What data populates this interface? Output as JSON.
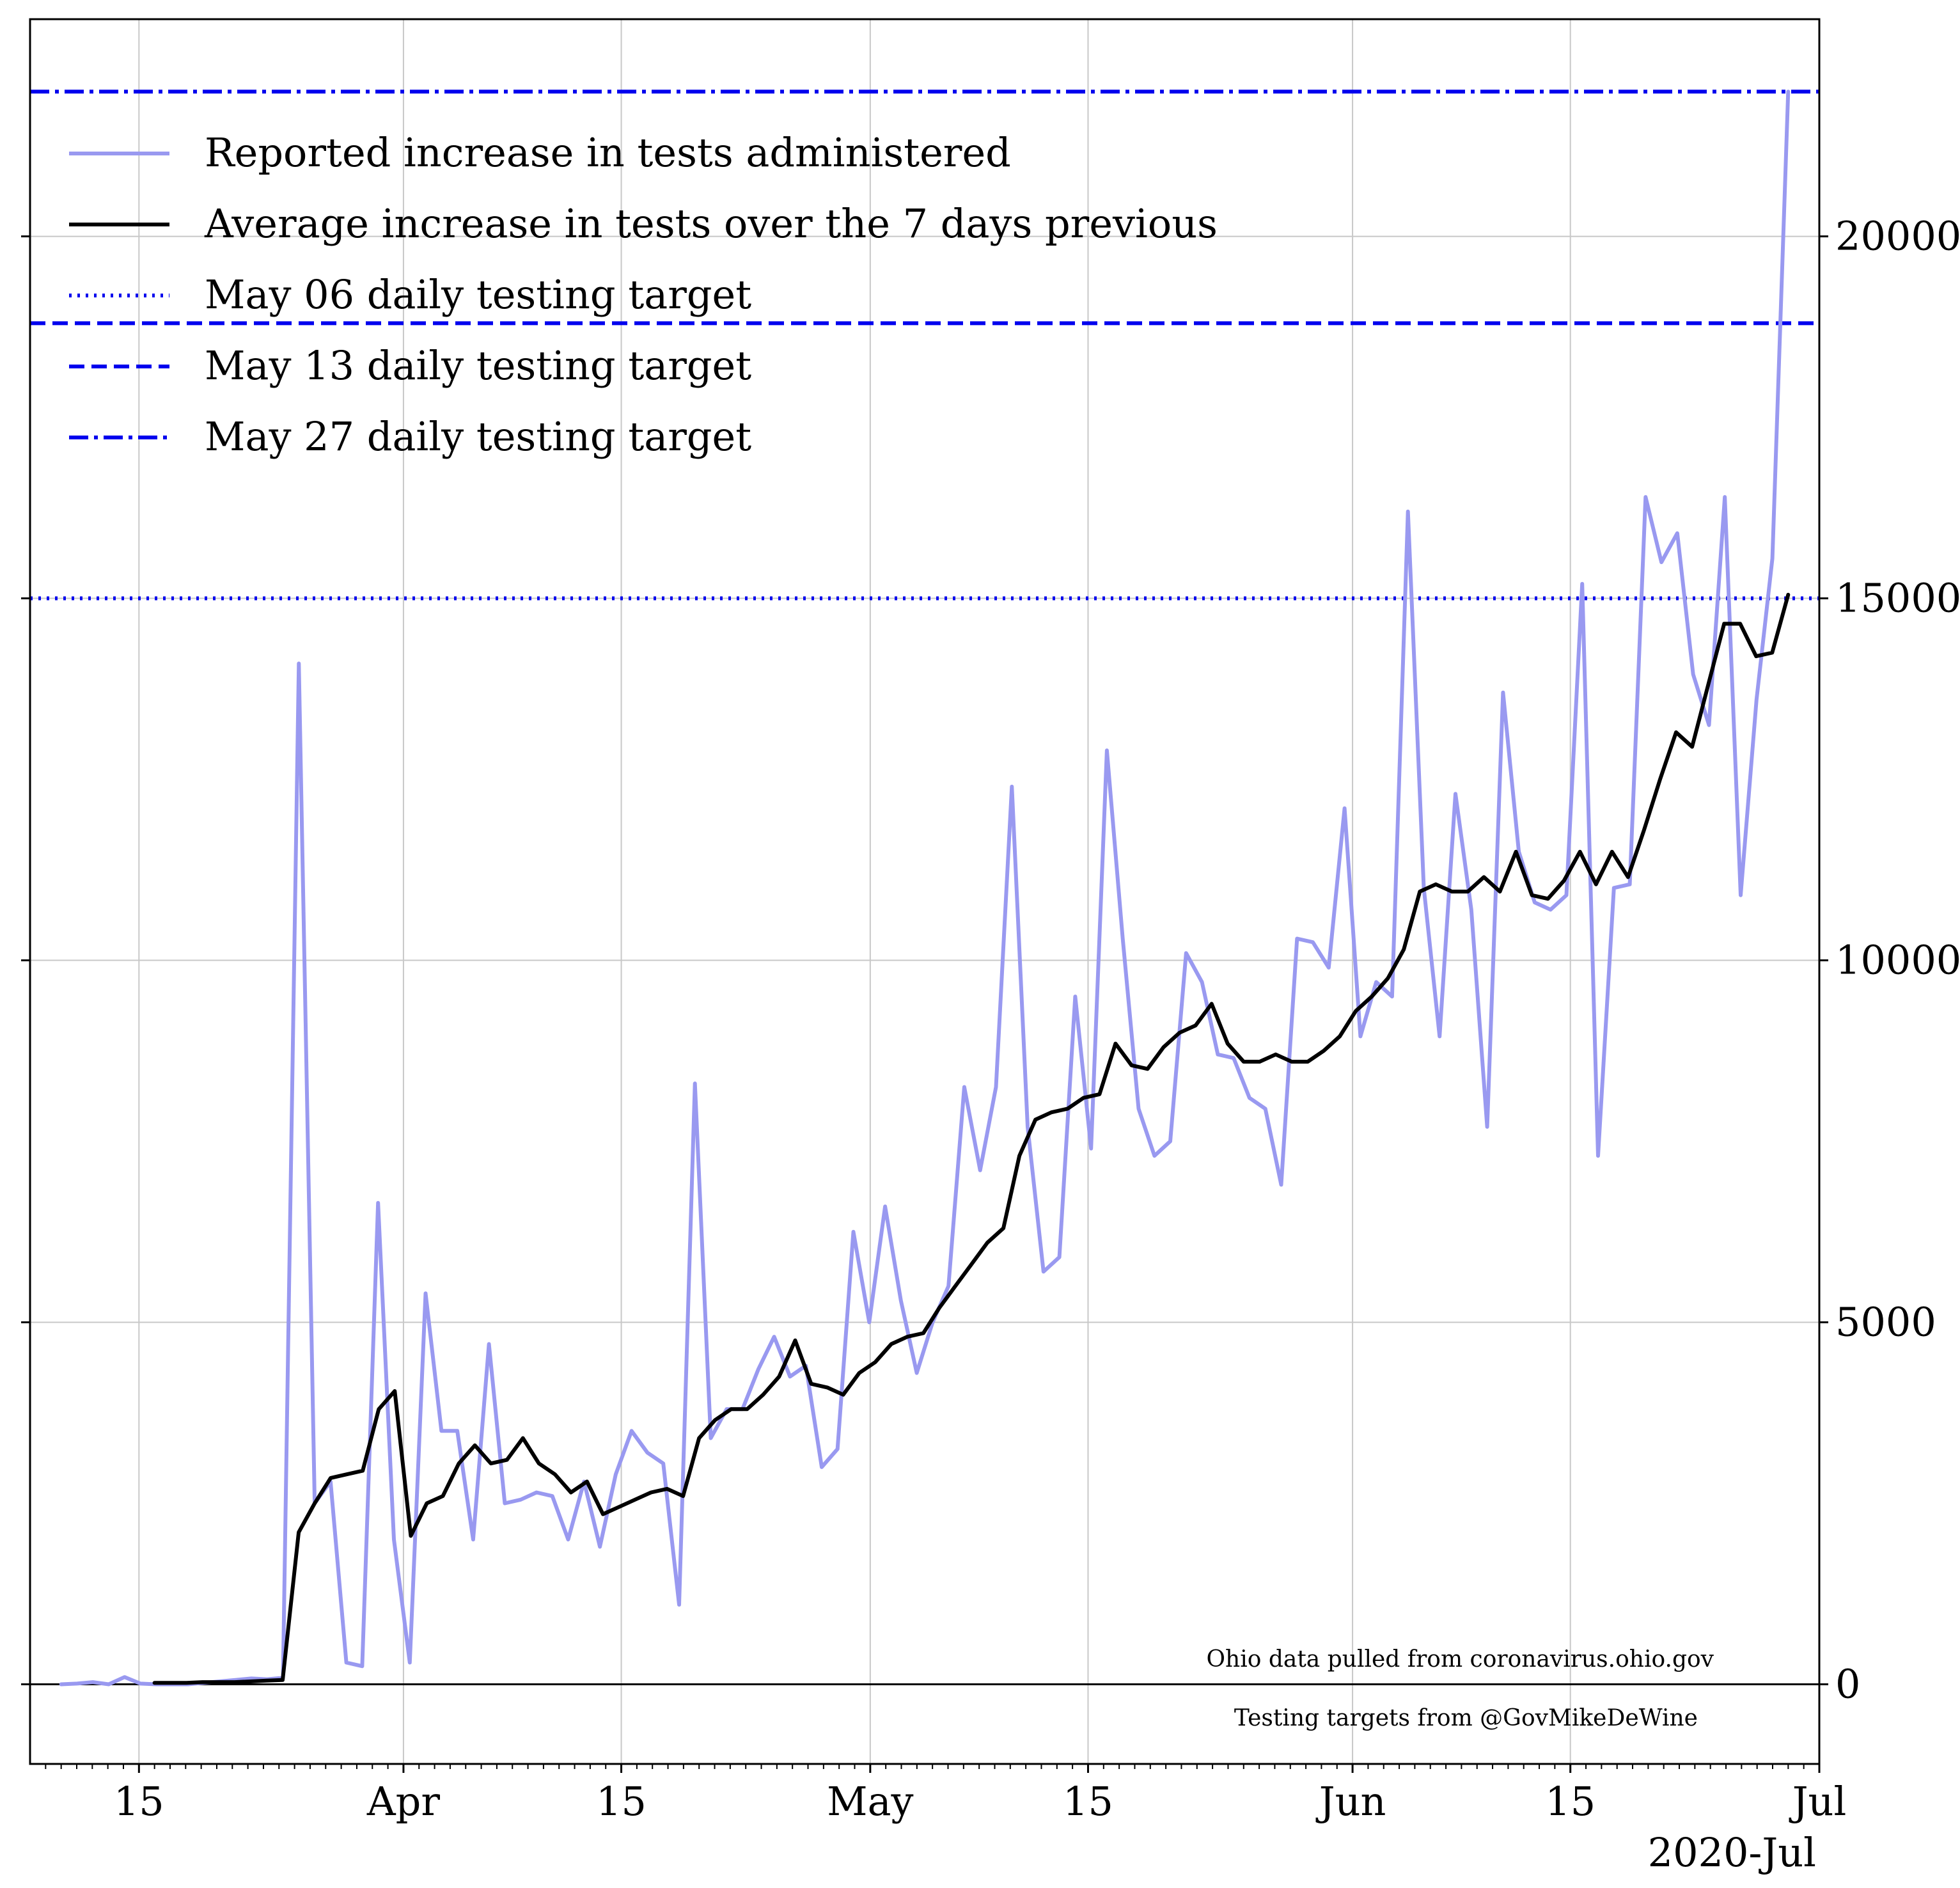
{
  "chart_data": {
    "type": "line",
    "x_axis": {
      "type": "date",
      "range": [
        "2020-03-08",
        "2020-07-01"
      ],
      "tick_labels": [
        {
          "date": "2020-03-15",
          "label": "15"
        },
        {
          "date": "2020-04-01",
          "label": "Apr"
        },
        {
          "date": "2020-04-15",
          "label": "15"
        },
        {
          "date": "2020-05-01",
          "label": "May"
        },
        {
          "date": "2020-05-15",
          "label": "15"
        },
        {
          "date": "2020-06-01",
          "label": "Jun"
        },
        {
          "date": "2020-06-15",
          "label": "15"
        },
        {
          "date": "2020-07-01",
          "label": "Jul"
        }
      ],
      "offset_label": "2020-Jul"
    },
    "y_axis": {
      "range": [
        -1100,
        23000
      ],
      "ticks": [
        0,
        5000,
        10000,
        15000,
        20000
      ],
      "tick_labels": [
        "0",
        "5000",
        "10000",
        "15000",
        "20000"
      ],
      "position": "right"
    },
    "grid": true,
    "legend": {
      "placement": "upper-left",
      "entries": [
        "Reported increase in tests administered",
        "Average increase in tests over the 7 days previous",
        "May 06 daily testing target",
        "May 13 daily testing target",
        "May 27 daily testing target"
      ]
    },
    "series": [
      {
        "name": "Reported increase in tests administered",
        "color": "#9999f0",
        "start_date": "2020-03-10",
        "values": [
          0,
          10,
          30,
          0,
          100,
          10,
          0,
          0,
          0,
          20,
          40,
          60,
          80,
          70,
          90,
          14100,
          2500,
          2800,
          300,
          250,
          6650,
          2000,
          300,
          5400,
          3500,
          3500,
          2000,
          4700,
          2500,
          2550,
          2650,
          2600,
          2000,
          2800,
          1900,
          2900,
          3500,
          3200,
          3050,
          1100,
          8300,
          3400,
          3800,
          3800,
          4350,
          4800,
          4250,
          4400,
          3000,
          3250,
          6250,
          5000,
          6600,
          5300,
          4300,
          5000,
          5500,
          8250,
          7100,
          8250,
          12400,
          7700,
          5700,
          5900,
          9500,
          7400,
          12900,
          10300,
          7950,
          7300,
          7500,
          10100,
          9700,
          8700,
          8650,
          8100,
          7950,
          6900,
          10300,
          10250,
          9900,
          12100,
          8950,
          9700,
          9500,
          16200,
          11000,
          8950,
          12300,
          10700,
          7700,
          13700,
          11500,
          10800,
          10700,
          10900,
          15200,
          7300,
          11000,
          11050,
          16400,
          15500,
          15900,
          13950,
          13250,
          16400,
          10900,
          13600,
          15550,
          22000
        ],
        "x_max_date": "2020-06-29"
      },
      {
        "name": "Average increase in tests over the 7 days previous",
        "color": "#000000",
        "start_date": "2020-03-16",
        "values": [
          20,
          20,
          20,
          30,
          30,
          30,
          40,
          50,
          60,
          2100,
          2500,
          2850,
          2900,
          2950,
          3800,
          4050,
          2050,
          2500,
          2600,
          3050,
          3300,
          3050,
          3100,
          3400,
          3050,
          2900,
          2650,
          2800,
          2350,
          2450,
          2550,
          2650,
          2700,
          2600,
          3400,
          3650,
          3800,
          3800,
          4000,
          4250,
          4750,
          4150,
          4100,
          4000,
          4300,
          4450,
          4700,
          4800,
          4850,
          5200,
          5500,
          5800,
          6100,
          6300,
          7300,
          7800,
          7900,
          7950,
          8100,
          8150,
          8850,
          8550,
          8500,
          8800,
          9000,
          9100,
          9400,
          8850,
          8600,
          8600,
          8700,
          8600,
          8600,
          8750,
          8950,
          9300,
          9500,
          9750,
          10150,
          10950,
          11050,
          10950,
          10950,
          11150,
          10950,
          11500,
          10900,
          10850,
          11100,
          11500,
          11050,
          11500,
          11150,
          11800,
          12500,
          13150,
          12950,
          13800,
          14650,
          14650,
          14200,
          14250,
          15050
        ],
        "x_max_date": "2020-06-29"
      }
    ],
    "reference_lines": [
      {
        "name": "May 06 daily testing target",
        "y": 15000,
        "style": "dotted",
        "color": "#0000ee"
      },
      {
        "name": "May 13 daily testing target",
        "y": 18800,
        "style": "dashed",
        "color": "#0000ee"
      },
      {
        "name": "May 27 daily testing target",
        "y": 22000,
        "style": "dashdot",
        "color": "#0000ee"
      }
    ],
    "annotations": [
      "Ohio data pulled from coronavirus.ohio.gov",
      "Testing targets from @GovMikeDeWine"
    ]
  }
}
